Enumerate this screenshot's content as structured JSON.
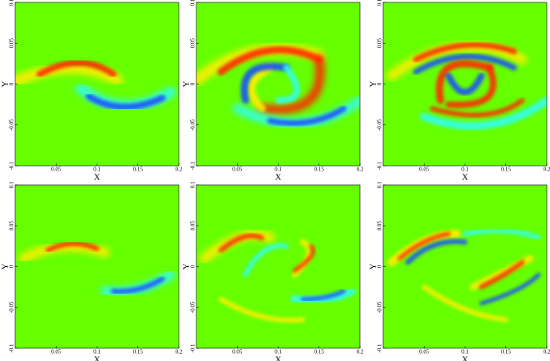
{
  "chart_data": [
    {
      "type": "heatmap",
      "xlabel": "X",
      "ylabel": "Y",
      "xlim": [
        0,
        0.2
      ],
      "ylim": [
        -0.1,
        0.1
      ],
      "xticks": [
        0.05,
        0.1,
        0.15,
        0.2
      ],
      "yticks": [
        -0.1,
        -0.05,
        0,
        0.05,
        0.1
      ],
      "background": "#66ff00"
    },
    {
      "type": "heatmap",
      "xlabel": "X",
      "ylabel": "Y",
      "xlim": [
        0,
        0.2
      ],
      "ylim": [
        -0.1,
        0.1
      ],
      "xticks": [
        0.05,
        0.1,
        0.15,
        0.2
      ],
      "yticks": [
        -0.1,
        -0.05,
        0,
        0.05,
        0.1
      ],
      "background": "#66ff00"
    },
    {
      "type": "heatmap",
      "xlabel": "X",
      "ylabel": "Y",
      "xlim": [
        0,
        0.2
      ],
      "ylim": [
        -0.1,
        0.1
      ],
      "xticks": [
        0.05,
        0.1,
        0.15,
        0.2
      ],
      "yticks": [
        -0.1,
        -0.05,
        0,
        0.05,
        0.1
      ],
      "background": "#66ff00"
    },
    {
      "type": "heatmap",
      "xlabel": "X",
      "ylabel": "Y",
      "xlim": [
        0,
        0.2
      ],
      "ylim": [
        -0.1,
        0.1
      ],
      "xticks": [
        0.05,
        0.1,
        0.15,
        0.2
      ],
      "yticks": [
        -0.1,
        -0.05,
        0,
        0.05,
        0.1
      ],
      "background": "#66ff00"
    },
    {
      "type": "heatmap",
      "xlabel": "X",
      "ylabel": "Y",
      "xlim": [
        0,
        0.2
      ],
      "ylim": [
        -0.1,
        0.1
      ],
      "xticks": [
        0.05,
        0.1,
        0.15,
        0.2
      ],
      "yticks": [
        -0.1,
        -0.05,
        0,
        0.05,
        0.1
      ],
      "background": "#66ff00"
    },
    {
      "type": "heatmap",
      "xlabel": "X",
      "ylabel": "Y",
      "xlim": [
        0,
        0.2
      ],
      "ylim": [
        -0.1,
        0.1
      ],
      "xticks": [
        0.05,
        0.1,
        0.15,
        0.2
      ],
      "yticks": [
        -0.1,
        -0.05,
        0,
        0.05,
        0.1
      ],
      "background": "#66ff00"
    }
  ]
}
